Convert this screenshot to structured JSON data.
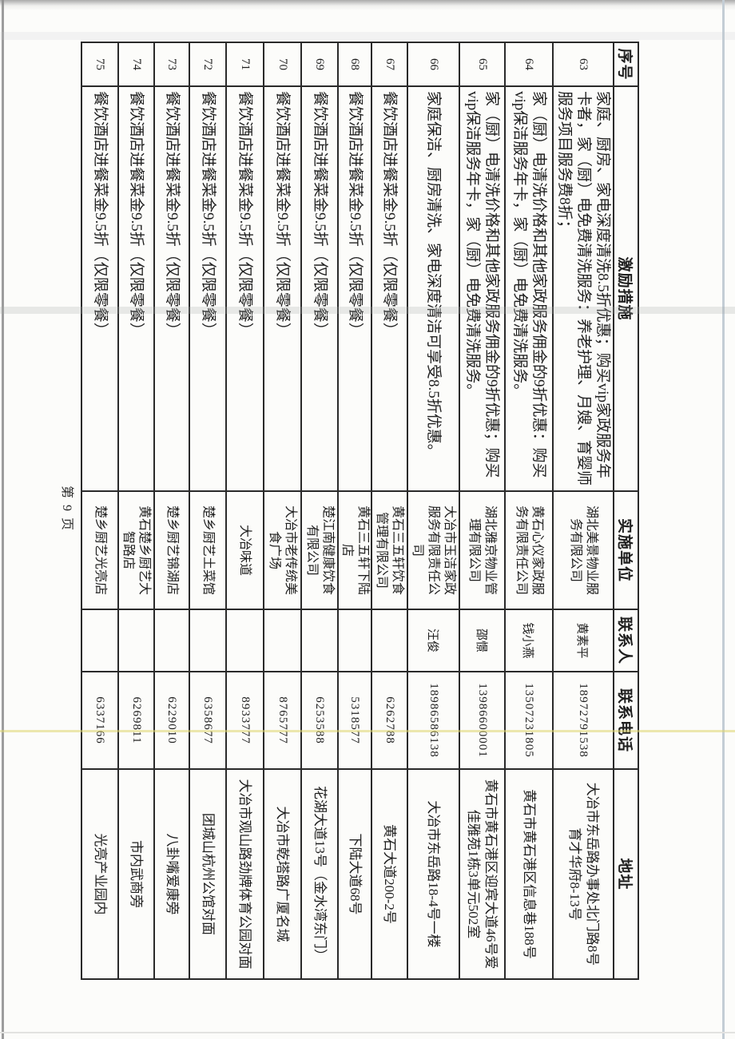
{
  "page": {
    "footer": "第 9 页",
    "ink_color": "#1f1f1f",
    "paper_color": "#fcfcfa"
  },
  "table": {
    "headers": [
      "序号",
      "激励措施",
      "实施单位",
      "联系人",
      "联系电话",
      "地址"
    ],
    "rows": [
      {
        "no": "63",
        "measure": "家庭、厨房、家电深度清洗8.5折优惠；购买vip家政服务年卡者，家（厨）电免费清洗服务：养老护理、月嫂、育婴师服务项目服务费8折；",
        "unit": "湖北美景物业服务有限公司",
        "contact": "黄素平",
        "phone": "18972791538",
        "address": "大冶市东岳路办事处北门路8号育才华府8-13号"
      },
      {
        "no": "64",
        "measure": "家（厨）电清洗价格和其他家政服务佣金的9折优惠：购买vip保洁服务年卡，家（厨）电免费清洗服务。",
        "unit": "黄石心仪家政服务有限责任公司",
        "contact": "钱小燕",
        "phone": "13507231805",
        "address": "黄石市黄石港区信息巷188号"
      },
      {
        "no": "65",
        "measure": "家（厨）电清洗价格和其他家政服务佣金的9折优惠；购买vip保洁服务年卡，家（厨）电免费清洗服务。",
        "unit": "湖北雅京物业管理有限公司",
        "contact": "邵憬",
        "phone": "13986600001",
        "address": "黄石市黄石港区迎宾大道46号爱佳雅苑1栋3单元502室"
      },
      {
        "no": "66",
        "measure": "家庭保洁、厨房清洗、家电深度清洁可享受8.5折优惠。",
        "unit": "大冶市玉洁家政服务有限责任公司",
        "contact": "汪俊",
        "phone": "18986586138",
        "address": "大冶市东岳路18-4号一楼"
      },
      {
        "no": "67",
        "measure": "餐饮酒店进餐菜金9.5折（仅限零餐）",
        "unit": "黄石三五轩饮食管理有限公司",
        "contact": "",
        "phone": "6262788",
        "address": "黄石大道200-2号"
      },
      {
        "no": "68",
        "measure": "餐饮酒店进餐菜金9.5折（仅限零餐）",
        "unit": "黄石三五轩下陆店",
        "contact": "",
        "phone": "5318577",
        "address": "下陆大道68号"
      },
      {
        "no": "69",
        "measure": "餐饮酒店进餐菜金9.5折（仅限零餐）",
        "unit": "楚江南健康饮食有限公司",
        "contact": "",
        "phone": "6253588",
        "address": "花湖大道13号（金水湾东门）"
      },
      {
        "no": "70",
        "measure": "餐饮酒店进餐菜金9.5折（仅限零餐）",
        "unit": "大冶市老传统美食广场",
        "contact": "",
        "phone": "8765777",
        "address": "大冶市乾塔路广厦名城"
      },
      {
        "no": "71",
        "measure": "餐饮酒店进餐菜金9.5折（仅限零餐）",
        "unit": "大冶味道",
        "contact": "",
        "phone": "8933777",
        "address": "大冶市观山路劲牌体育公园对面"
      },
      {
        "no": "72",
        "measure": "餐饮酒店进餐菜金9.5折（仅限零餐）",
        "unit": "楚乡厨艺土菜馆",
        "contact": "",
        "phone": "6358677",
        "address": "团城山杭州公馆对面"
      },
      {
        "no": "73",
        "measure": "餐饮酒店进餐菜金9.5折（仅限零餐）",
        "unit": "楚乡厨艺锦湖店",
        "contact": "",
        "phone": "6229010",
        "address": "八卦嘴爱康旁"
      },
      {
        "no": "74",
        "measure": "餐饮酒店进餐菜金9.5折（仅限零餐）",
        "unit": "黄石楚乡厨艺大智路店",
        "contact": "",
        "phone": "6269811",
        "address": "市内武商旁"
      },
      {
        "no": "75",
        "measure": "餐饮酒店进餐菜金9.5折（仅限零餐）",
        "unit": "楚乡厨艺光亮店",
        "contact": "",
        "phone": "6337166",
        "address": "光亮产业园内"
      }
    ]
  }
}
